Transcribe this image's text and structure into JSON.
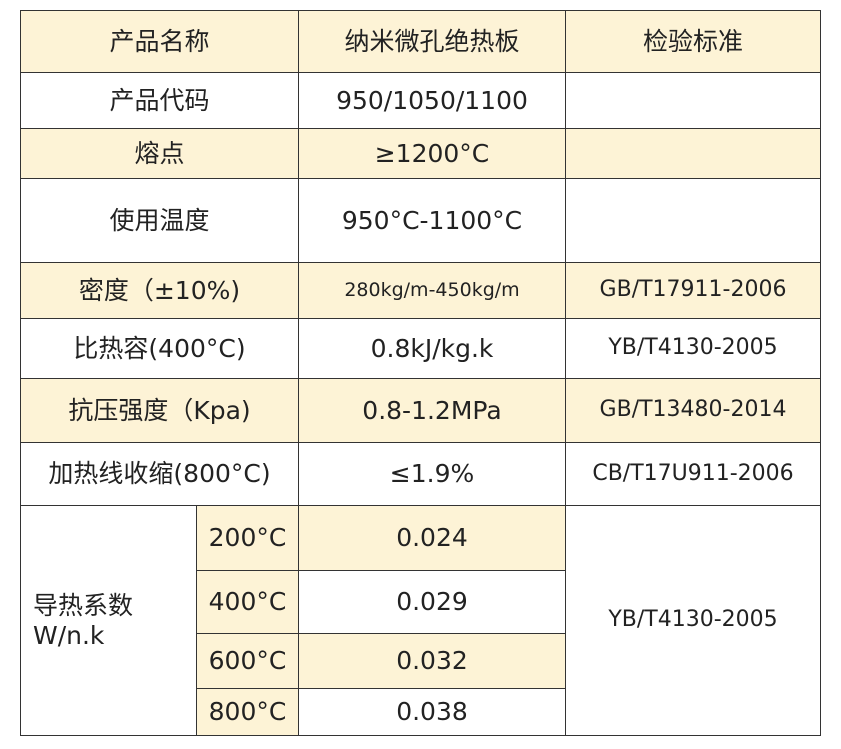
{
  "table": {
    "header": [
      "产品名称",
      "纳米微孔绝热板",
      "检验标准"
    ],
    "rows": [
      [
        "产品代码",
        "950/1050/1100"
      ],
      [
        "熔点",
        "≥1200°C"
      ],
      [
        "使用温度",
        "950°C-1100°C"
      ],
      [
        "密度（±10%)",
        "280kg/m-450kg/m",
        "GB/T17911-2006"
      ],
      [
        "比热容(400°C)",
        "0.8kJ/kg.k",
        "YB/T4130-2005"
      ],
      [
        "抗压强度（Kpa)",
        "0.8-1.2MPa",
        "GB/T13480-2014"
      ],
      [
        "加热线收缩(800°C)",
        "≤1.9%",
        "CB/T17U911-2006"
      ]
    ],
    "conductivity": {
      "label": [
        "导热系数",
        "W/n.k"
      ],
      "rows": [
        [
          "200°C",
          "0.024"
        ],
        [
          "400°C",
          "0.029"
        ],
        [
          "600°C",
          "0.032"
        ],
        [
          "800°C",
          "0.038"
        ]
      ],
      "standard": "YB/T4130-2005"
    }
  }
}
